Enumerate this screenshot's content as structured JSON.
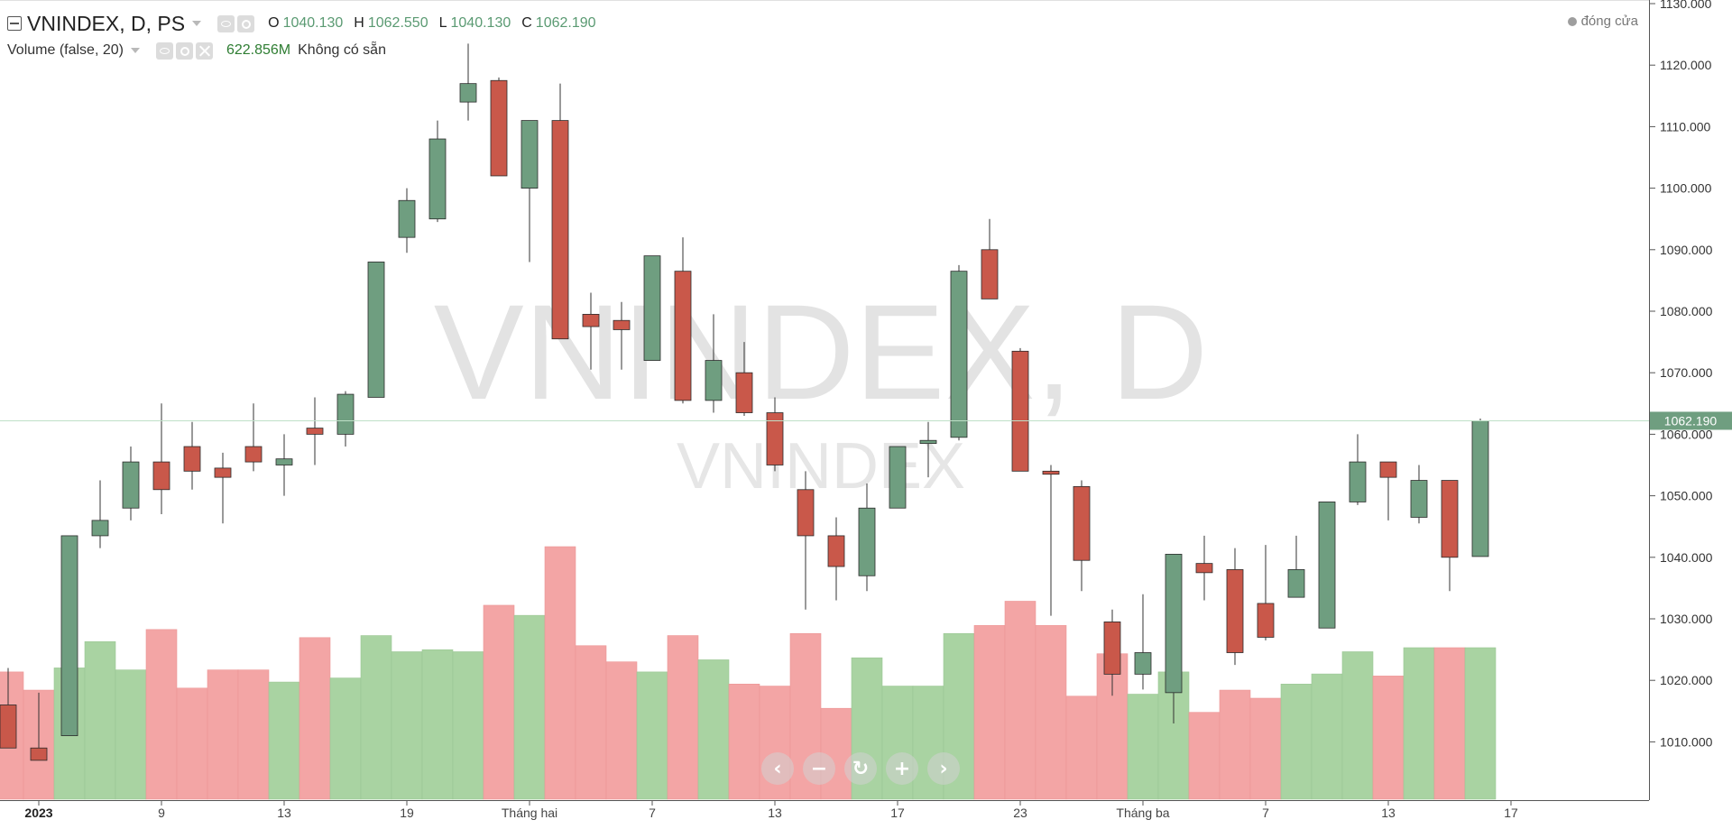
{
  "legend": {
    "symbol": "VNINDEX, D, PS",
    "open_label": "O",
    "open": "1040.130",
    "high_label": "H",
    "high": "1062.550",
    "low_label": "L",
    "low": "1040.130",
    "close_label": "C",
    "close": "1062.190"
  },
  "volume_legend": {
    "title": "Volume (false, 20)",
    "value": "622.856M",
    "status": "Không có sẵn"
  },
  "closing_indicator": "đóng cửa",
  "watermark": {
    "main": "VNINDEX, D",
    "sub": "VNINDEX"
  },
  "price_marker": "1062.190",
  "colors": {
    "up": "#6f9e80",
    "down": "#c9584a",
    "vol_up": "#a9d3a2",
    "vol_down": "#f3a5a5",
    "last_line": "#bfe0c8"
  },
  "nav_icons": [
    "chevron-left-icon",
    "minus-icon",
    "reset-icon",
    "plus-icon",
    "chevron-right-icon"
  ],
  "chart_data": {
    "type": "candlestick",
    "y_axis": {
      "ticks": [
        "1010.000",
        "1020.000",
        "1030.000",
        "1040.000",
        "1050.000",
        "1060.000",
        "1070.000",
        "1080.000",
        "1090.000",
        "1100.000",
        "1110.000",
        "1120.000",
        "1130.000"
      ],
      "range": [
        1003,
        1130
      ]
    },
    "x_axis": {
      "labels": [
        {
          "index": 1,
          "text": "2023"
        },
        {
          "index": 5,
          "text": "9"
        },
        {
          "index": 9,
          "text": "13"
        },
        {
          "index": 13,
          "text": "19"
        },
        {
          "index": 17,
          "text": "Tháng hai"
        },
        {
          "index": 21,
          "text": "7"
        },
        {
          "index": 25,
          "text": "13"
        },
        {
          "index": 29,
          "text": "17"
        },
        {
          "index": 33,
          "text": "23"
        },
        {
          "index": 37,
          "text": "Tháng ba"
        },
        {
          "index": 41,
          "text": "7"
        },
        {
          "index": 45,
          "text": "13"
        },
        {
          "index": 49,
          "text": "17"
        }
      ]
    },
    "last_close": 1062.19,
    "candles": [
      {
        "o": 1016,
        "h": 1022,
        "l": 1009,
        "c": 1009
      },
      {
        "o": 1009,
        "h": 1018,
        "l": 1007,
        "c": 1007
      },
      {
        "o": 1011,
        "h": 1043,
        "l": 1011,
        "c": 1043.5
      },
      {
        "o": 1043.5,
        "h": 1052.5,
        "l": 1041.5,
        "c": 1046
      },
      {
        "o": 1048,
        "h": 1058,
        "l": 1046,
        "c": 1055.5
      },
      {
        "o": 1055.5,
        "h": 1065,
        "l": 1047,
        "c": 1051
      },
      {
        "o": 1058,
        "h": 1062,
        "l": 1051,
        "c": 1054
      },
      {
        "o": 1054.5,
        "h": 1057,
        "l": 1045.5,
        "c": 1053
      },
      {
        "o": 1058,
        "h": 1065,
        "l": 1054,
        "c": 1055.5
      },
      {
        "o": 1055,
        "h": 1060,
        "l": 1050,
        "c": 1056
      },
      {
        "o": 1061,
        "h": 1066,
        "l": 1055,
        "c": 1060
      },
      {
        "o": 1060,
        "h": 1067,
        "l": 1058,
        "c": 1066.5
      },
      {
        "o": 1066,
        "h": 1088,
        "l": 1066,
        "c": 1088
      },
      {
        "o": 1092,
        "h": 1100,
        "l": 1089.5,
        "c": 1098
      },
      {
        "o": 1095,
        "h": 1111,
        "l": 1094.5,
        "c": 1108
      },
      {
        "o": 1114,
        "h": 1123.5,
        "l": 1111,
        "c": 1117
      },
      {
        "o": 1117.5,
        "h": 1118,
        "l": 1102,
        "c": 1102
      },
      {
        "o": 1100,
        "h": 1111,
        "l": 1088,
        "c": 1111
      },
      {
        "o": 1111,
        "h": 1117,
        "l": 1075.5,
        "c": 1075.5
      },
      {
        "o": 1079.5,
        "h": 1083,
        "l": 1070.5,
        "c": 1077.5
      },
      {
        "o": 1078.5,
        "h": 1081.5,
        "l": 1070.5,
        "c": 1077
      },
      {
        "o": 1072,
        "h": 1089,
        "l": 1072,
        "c": 1089
      },
      {
        "o": 1086.5,
        "h": 1092,
        "l": 1065,
        "c": 1065.5
      },
      {
        "o": 1065.5,
        "h": 1079.5,
        "l": 1063.5,
        "c": 1072
      },
      {
        "o": 1070,
        "h": 1075,
        "l": 1063,
        "c": 1063.5
      },
      {
        "o": 1063.5,
        "h": 1066,
        "l": 1054,
        "c": 1055
      },
      {
        "o": 1051,
        "h": 1054,
        "l": 1031.5,
        "c": 1043.5
      },
      {
        "o": 1043.5,
        "h": 1046.5,
        "l": 1033,
        "c": 1038.5
      },
      {
        "o": 1037,
        "h": 1052,
        "l": 1034.5,
        "c": 1048
      },
      {
        "o": 1048,
        "h": 1058,
        "l": 1048,
        "c": 1058
      },
      {
        "o": 1058.5,
        "h": 1062,
        "l": 1053,
        "c": 1059
      },
      {
        "o": 1059.5,
        "h": 1087.5,
        "l": 1059,
        "c": 1086.5
      },
      {
        "o": 1090,
        "h": 1095,
        "l": 1082,
        "c": 1082
      },
      {
        "o": 1073.5,
        "h": 1074,
        "l": 1054,
        "c": 1054
      },
      {
        "o": 1054,
        "h": 1055,
        "l": 1030.5,
        "c": 1053.5
      },
      {
        "o": 1051.5,
        "h": 1052.5,
        "l": 1034.5,
        "c": 1039.5
      },
      {
        "o": 1029.5,
        "h": 1031.5,
        "l": 1017.5,
        "c": 1021
      },
      {
        "o": 1021,
        "h": 1034,
        "l": 1018.5,
        "c": 1024.5
      },
      {
        "o": 1018,
        "h": 1040,
        "l": 1013,
        "c": 1040.5
      },
      {
        "o": 1039,
        "h": 1043.5,
        "l": 1033,
        "c": 1037.5
      },
      {
        "o": 1038,
        "h": 1041.5,
        "l": 1022.5,
        "c": 1024.5
      },
      {
        "o": 1032.5,
        "h": 1042,
        "l": 1026.5,
        "c": 1027
      },
      {
        "o": 1033.5,
        "h": 1043.5,
        "l": 1033.5,
        "c": 1038
      },
      {
        "o": 1028.5,
        "h": 1049,
        "l": 1028.5,
        "c": 1049
      },
      {
        "o": 1049,
        "h": 1060,
        "l": 1048.5,
        "c": 1055.5
      },
      {
        "o": 1055.5,
        "h": 1055.5,
        "l": 1046,
        "c": 1053
      },
      {
        "o": 1046.5,
        "h": 1055,
        "l": 1045.5,
        "c": 1052.5
      },
      {
        "o": 1052.5,
        "h": 1052.5,
        "l": 1034.5,
        "c": 1040
      },
      {
        "o": 1040.13,
        "h": 1062.55,
        "l": 1040.13,
        "c": 1062.19
      }
    ],
    "volume": [
      {
        "v": 0.63,
        "up": false
      },
      {
        "v": 0.54,
        "up": false
      },
      {
        "v": 0.65,
        "up": true
      },
      {
        "v": 0.78,
        "up": true
      },
      {
        "v": 0.64,
        "up": true
      },
      {
        "v": 0.84,
        "up": false
      },
      {
        "v": 0.55,
        "up": false
      },
      {
        "v": 0.64,
        "up": false
      },
      {
        "v": 0.64,
        "up": false
      },
      {
        "v": 0.58,
        "up": true
      },
      {
        "v": 0.8,
        "up": false
      },
      {
        "v": 0.6,
        "up": true
      },
      {
        "v": 0.81,
        "up": true
      },
      {
        "v": 0.73,
        "up": true
      },
      {
        "v": 0.74,
        "up": true
      },
      {
        "v": 0.73,
        "up": true
      },
      {
        "v": 0.96,
        "up": false
      },
      {
        "v": 0.91,
        "up": true
      },
      {
        "v": 1.25,
        "up": false
      },
      {
        "v": 0.76,
        "up": false
      },
      {
        "v": 0.68,
        "up": false
      },
      {
        "v": 0.63,
        "up": true
      },
      {
        "v": 0.81,
        "up": false
      },
      {
        "v": 0.69,
        "up": true
      },
      {
        "v": 0.57,
        "up": false
      },
      {
        "v": 0.56,
        "up": false
      },
      {
        "v": 0.82,
        "up": false
      },
      {
        "v": 0.45,
        "up": false
      },
      {
        "v": 0.7,
        "up": true
      },
      {
        "v": 0.56,
        "up": true
      },
      {
        "v": 0.56,
        "up": true
      },
      {
        "v": 0.82,
        "up": true
      },
      {
        "v": 0.86,
        "up": false
      },
      {
        "v": 0.98,
        "up": false
      },
      {
        "v": 0.86,
        "up": false
      },
      {
        "v": 0.51,
        "up": false
      },
      {
        "v": 0.72,
        "up": false
      },
      {
        "v": 0.52,
        "up": true
      },
      {
        "v": 0.63,
        "up": true
      },
      {
        "v": 0.43,
        "up": false
      },
      {
        "v": 0.54,
        "up": false
      },
      {
        "v": 0.5,
        "up": false
      },
      {
        "v": 0.57,
        "up": true
      },
      {
        "v": 0.62,
        "up": true
      },
      {
        "v": 0.73,
        "up": true
      },
      {
        "v": 0.61,
        "up": false
      },
      {
        "v": 0.75,
        "up": true
      },
      {
        "v": 0.75,
        "up": false
      },
      {
        "v": 0.75,
        "up": true
      }
    ]
  }
}
